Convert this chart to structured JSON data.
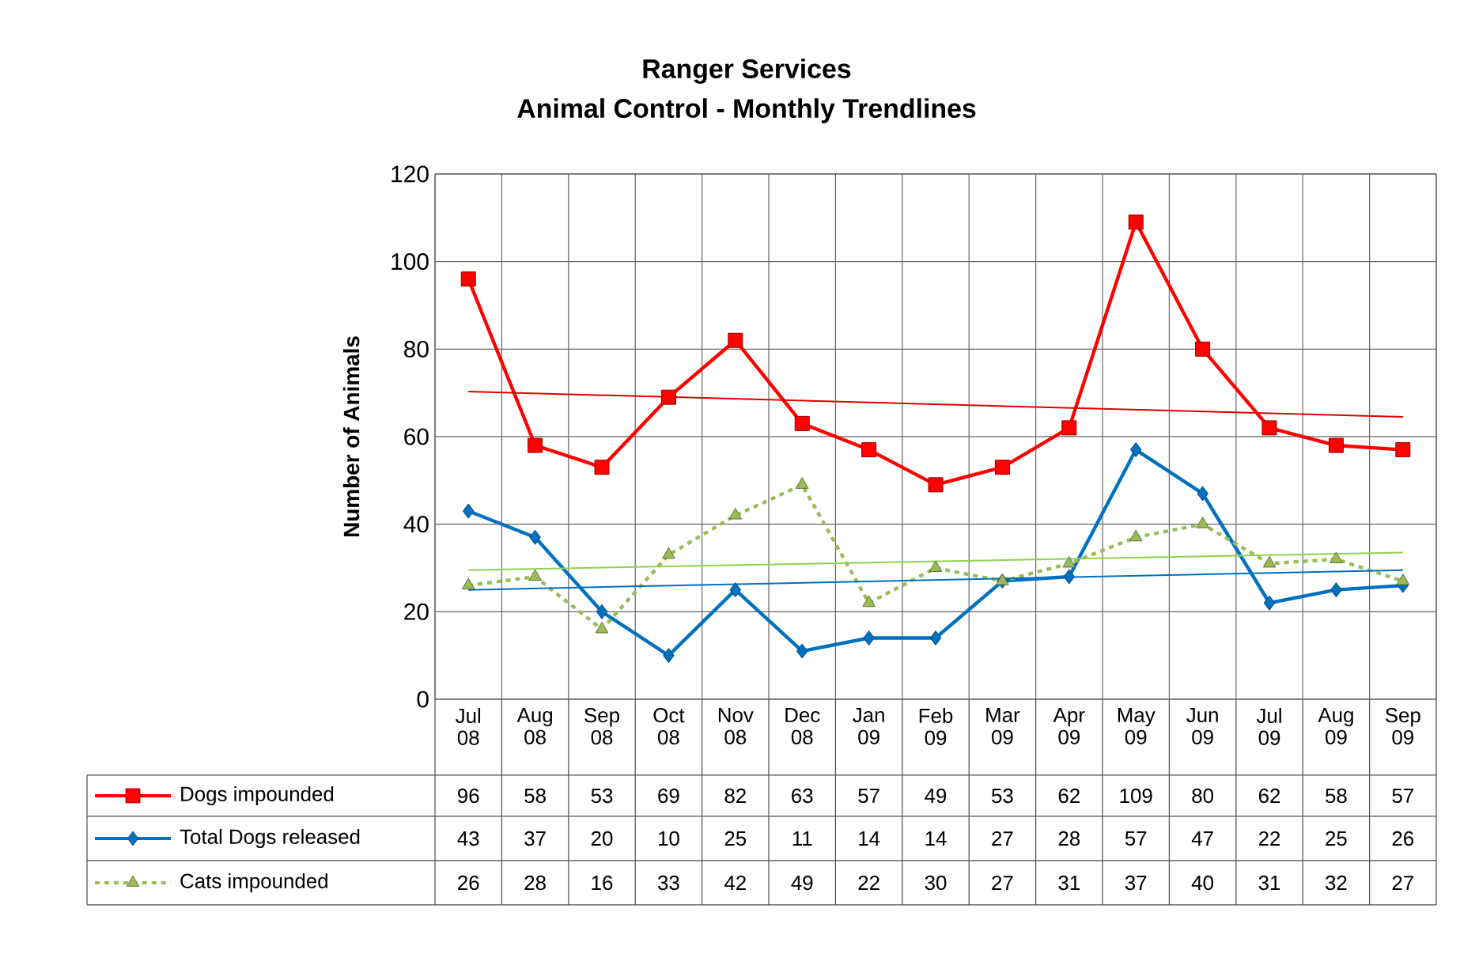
{
  "chart_data": {
    "type": "line",
    "title": "Ranger Services",
    "subtitle": "Animal Control - Monthly Trendlines",
    "ylabel": "Number of Animals",
    "categories": [
      "Jul 08",
      "Aug 08",
      "Sep 08",
      "Oct 08",
      "Nov 08",
      "Dec 08",
      "Jan 09",
      "Feb 09",
      "Mar 09",
      "Apr 09",
      "May 09",
      "Jun 09",
      "Jul 09",
      "Aug 09",
      "Sep 09"
    ],
    "series": [
      {
        "name": "Dogs impounded",
        "color": "#ff0000",
        "marker": "square",
        "line_style": "solid",
        "values": [
          96,
          58,
          53,
          69,
          82,
          63,
          57,
          49,
          53,
          62,
          109,
          80,
          62,
          58,
          57
        ],
        "value_labels": [
          "96",
          "58",
          "53",
          "69",
          "82",
          "63",
          "57",
          "49",
          "53",
          "62",
          "109",
          "80",
          "62",
          "58",
          "57"
        ]
      },
      {
        "name": "Total Dogs released",
        "color": "#0070c0",
        "marker": "diamond",
        "line_style": "solid",
        "values": [
          43,
          37,
          20,
          10,
          25,
          11,
          14,
          14,
          27,
          28,
          57,
          47,
          22,
          25,
          26
        ],
        "value_labels": [
          "43",
          "37",
          "20",
          "10",
          "25",
          "11",
          "14",
          "14",
          "27",
          "28",
          "57",
          "47",
          "22",
          "25",
          "26"
        ]
      },
      {
        "name": "Cats impounded",
        "color": "#9bbb59",
        "marker": "triangle",
        "line_style": "dashed",
        "values": [
          26,
          28,
          16,
          33,
          42,
          49,
          22,
          30,
          27,
          31,
          37,
          40,
          31,
          32,
          27
        ],
        "value_labels": [
          "26",
          "28",
          "16",
          "33",
          "42",
          "49",
          "22",
          "30",
          "27",
          "31",
          "37",
          "40",
          "31",
          "32",
          "27"
        ]
      },
      {
        "type": "line",
        "color": "#e00000",
        "marker": "none",
        "line_style": "solid",
        "x": [
          "Jul 08",
          "Sep 09"
        ],
        "values": [
          70.3,
          64.5
        ]
      },
      {
        "type": "line",
        "color": "#0070c0",
        "marker": "none",
        "line_style": "solid",
        "x": [
          "Jul 08",
          "Sep 09"
        ],
        "values": [
          25,
          29.5
        ]
      },
      {
        "type": "line",
        "color": "#92d050",
        "marker": "none",
        "line_style": "solid",
        "x": [
          "Jul 08",
          "Sep 09"
        ],
        "values": [
          29.5,
          33.5
        ]
      }
    ],
    "ylim": [
      0,
      120
    ],
    "yticks": [
      0,
      20,
      40,
      60,
      80,
      100,
      120
    ],
    "grid": true,
    "legend": "bottom"
  }
}
